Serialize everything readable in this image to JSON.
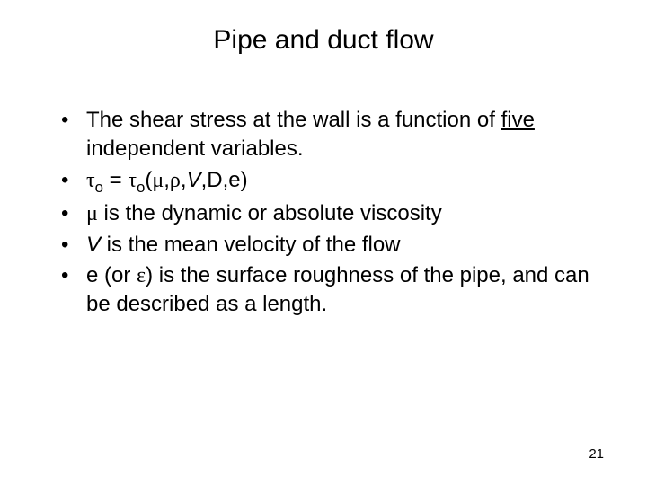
{
  "slide": {
    "title": "Pipe and duct flow",
    "page_number": "21",
    "background_color": "#ffffff",
    "text_color": "#000000",
    "title_fontsize": 30,
    "body_fontsize": 24,
    "pagenum_fontsize": 15,
    "font_family": "Verdana",
    "bullets": [
      {
        "pre": "The shear stress at the wall is a function of ",
        "underlined": "five",
        "post": " independent variables."
      },
      {
        "tau": "τ",
        "sub_o": "o",
        "eq": " = ",
        "open": "(",
        "mu": "μ",
        "c1": ",",
        "rho": "ρ",
        "c2": ",",
        "V": "V",
        "c3": ",D,e)"
      },
      {
        "mu": "μ",
        "rest": " is the dynamic or absolute viscosity"
      },
      {
        "V": "V",
        "rest": " is the mean velocity of the flow"
      },
      {
        "pre": "e (or ",
        "eps": "ε",
        "post": ") is the surface roughness of the pipe, and can be described as a length."
      }
    ]
  }
}
